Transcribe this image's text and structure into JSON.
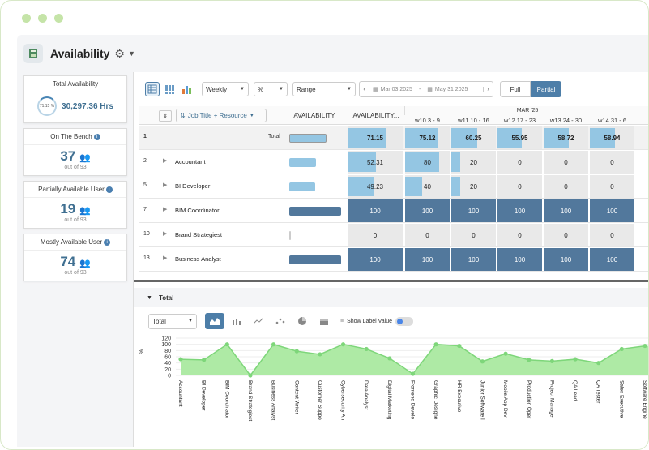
{
  "app": {
    "title": "Availability"
  },
  "cards": [
    {
      "title": "Total Availability",
      "pie_label": "71.15 %",
      "value": "30,297.36 Hrs",
      "sub": ""
    },
    {
      "title": "On The Bench",
      "value": "37",
      "sub": "out of 93"
    },
    {
      "title": "Partially Available User",
      "value": "19",
      "sub": "out of 93"
    },
    {
      "title": "Mostly Available User",
      "value": "74",
      "sub": "out of 93"
    }
  ],
  "toolbar": {
    "period": "Weekly",
    "unit": "%",
    "range": "Range",
    "date_from": "Mar 03 2025",
    "date_sep": "-",
    "date_to": "May 31 2025",
    "full": "Full",
    "partial": "Partial"
  },
  "grid": {
    "group_by": "Job Title + Resource",
    "col_availability": "AVAILABILITY",
    "col_availability_pct": "AVAILABILITY...",
    "month": "MAR '25",
    "weeks": [
      "w10 3 - 9",
      "w11 10 - 16",
      "w12 17 - 23",
      "w13 24 - 30",
      "w14 31 - 6"
    ],
    "rows": [
      {
        "index": "1",
        "name": "",
        "label": "Total",
        "avail": 71.15,
        "values": [
          75.12,
          60.25,
          55.95,
          58.72,
          58.94
        ]
      },
      {
        "index": "2",
        "name": "Accountant",
        "label": "",
        "avail": 52.31,
        "values": [
          80,
          20,
          0,
          0,
          0
        ]
      },
      {
        "index": "5",
        "name": "BI Developer",
        "label": "",
        "avail": 49.23,
        "values": [
          40,
          20,
          0,
          0,
          0
        ]
      },
      {
        "index": "7",
        "name": "BIM Coordinator",
        "label": "",
        "avail": 100,
        "values": [
          100,
          100,
          100,
          100,
          100
        ]
      },
      {
        "index": "10",
        "name": "Brand Strategiest",
        "label": "",
        "avail": 0,
        "values": [
          0,
          0,
          0,
          0,
          0
        ]
      },
      {
        "index": "13",
        "name": "Business Analyst",
        "label": "",
        "avail": 100,
        "values": [
          100,
          100,
          100,
          100,
          100
        ]
      }
    ]
  },
  "chart_panel": {
    "title": "Total",
    "select": "Total",
    "show_label": "Show Label Value"
  },
  "chart_data": {
    "type": "area",
    "ylabel": "%",
    "ylim": [
      0,
      120
    ],
    "yticks": [
      0,
      20,
      40,
      60,
      80,
      100,
      120
    ],
    "categories": [
      "Accountant",
      "BI Developer",
      "BIM Coordinator",
      "Brand Strategiest",
      "Business Analyst",
      "Content Writer",
      "Customer Suppo",
      "Cybersecurity An",
      "Data Analyst",
      "Digital Marketing",
      "Frontend Develo",
      "Graphic Designe",
      "HR Executive",
      "Junior Software I",
      "Mobile App Dev",
      "Production Oper",
      "Project Manager",
      "QA Lead",
      "QA Tester",
      "Sales Executive",
      "Software Engine"
    ],
    "series": [
      {
        "values": [
          52,
          50,
          100,
          0,
          100,
          78,
          68,
          100,
          85,
          55,
          5,
          100,
          95,
          45,
          70,
          50,
          46,
          52,
          40,
          85,
          95
        ]
      }
    ],
    "color": "#7ed67a",
    "fill": "#aeeaa5"
  },
  "colors": {
    "accent": "#4d7ea8",
    "light_bar": "#94c6e3",
    "dark_bar": "#52789c",
    "green": "#7ed67a"
  }
}
